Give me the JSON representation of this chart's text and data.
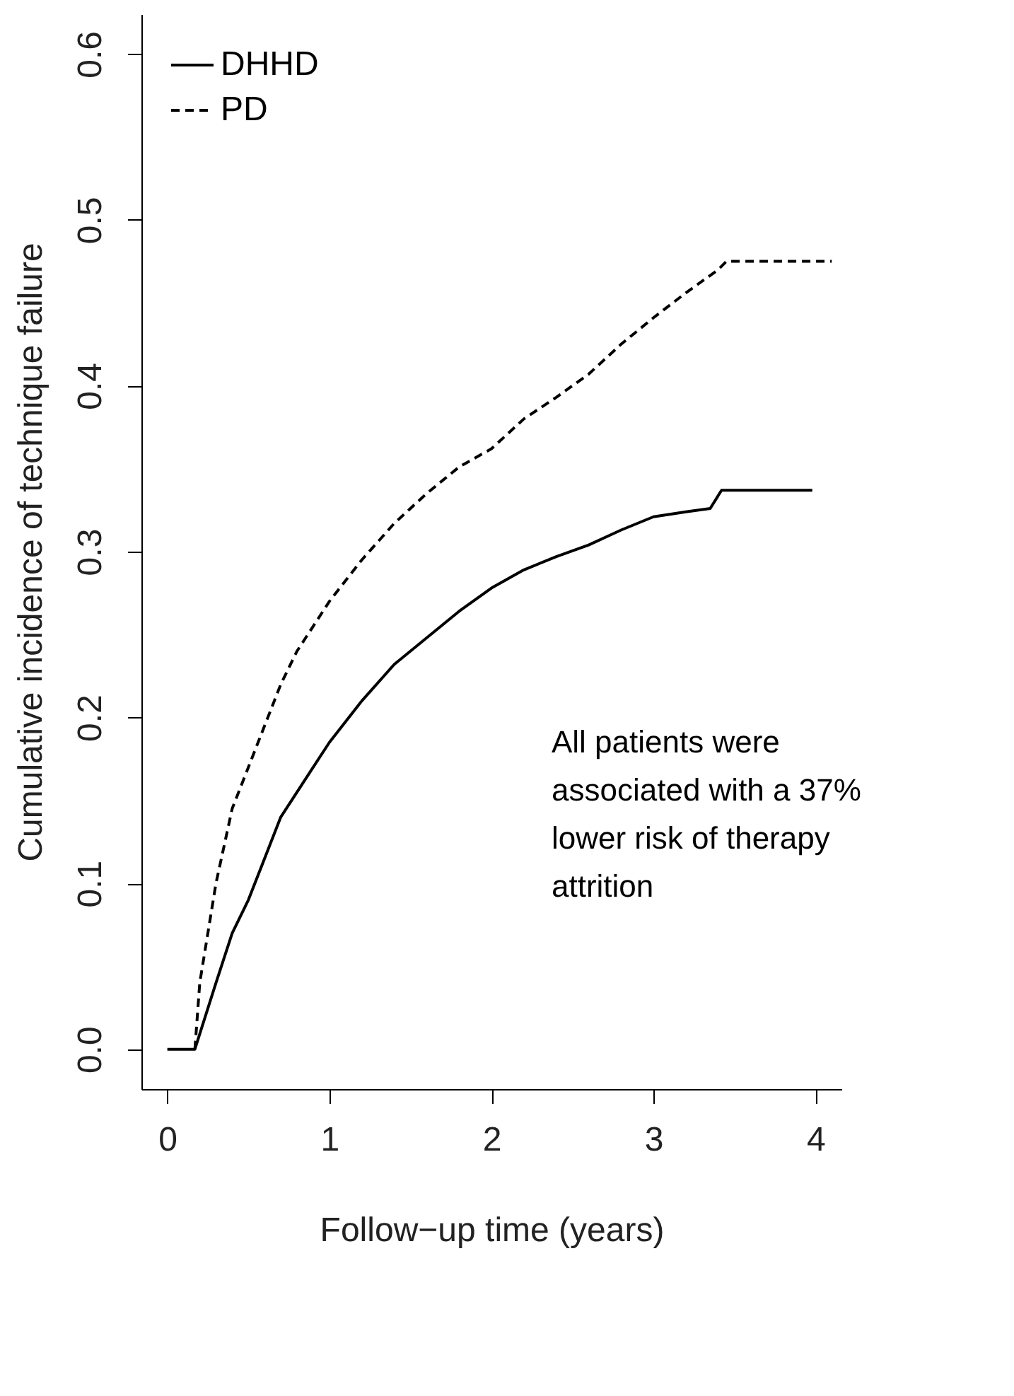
{
  "chart_data": {
    "type": "line",
    "xlabel": "Follow−up time (years)",
    "ylabel": "Cumulative incidence of technique failure",
    "xlim": [
      -0.16,
      4.16
    ],
    "ylim": [
      -0.024,
      0.624
    ],
    "xticks": [
      0,
      1,
      2,
      3,
      4
    ],
    "yticks": [
      {
        "value": 0,
        "label": "0.0"
      },
      0.1,
      0.2,
      0.3,
      0.4,
      0.5,
      0.6
    ],
    "grid": false,
    "legend": "top left",
    "marker": "none",
    "series": [
      {
        "name": "DHHD",
        "color": "#000000",
        "line_style": "solid",
        "x": [
          0,
          0.17,
          0.3,
          0.4,
          0.5,
          0.6,
          0.7,
          0.8,
          0.9,
          1.0,
          1.2,
          1.4,
          1.6,
          1.8,
          2.0,
          2.2,
          2.4,
          2.6,
          2.8,
          3.0,
          3.2,
          3.35,
          3.42,
          3.98
        ],
        "values": [
          0,
          0,
          0.04,
          0.07,
          0.09,
          0.115,
          0.14,
          0.155,
          0.17,
          0.185,
          0.21,
          0.232,
          0.248,
          0.264,
          0.278,
          0.289,
          0.297,
          0.304,
          0.313,
          0.321,
          0.324,
          0.326,
          0.337,
          0.337
        ]
      },
      {
        "name": "PD",
        "color": "#000000",
        "line_style": "dashed",
        "x": [
          0.17,
          0.2,
          0.3,
          0.4,
          0.5,
          0.6,
          0.7,
          0.8,
          0.9,
          1.0,
          1.2,
          1.4,
          1.6,
          1.8,
          2.0,
          2.2,
          2.4,
          2.6,
          2.8,
          3.0,
          3.2,
          3.4,
          3.45,
          4.1
        ],
        "values": [
          0,
          0.04,
          0.1,
          0.145,
          0.17,
          0.195,
          0.22,
          0.24,
          0.255,
          0.27,
          0.295,
          0.317,
          0.335,
          0.351,
          0.362,
          0.38,
          0.393,
          0.407,
          0.425,
          0.441,
          0.456,
          0.47,
          0.475,
          0.475
        ]
      }
    ],
    "annotations": [
      "All patients were\nassociated with a 37%\nlower risk of therapy\nattrition"
    ]
  }
}
